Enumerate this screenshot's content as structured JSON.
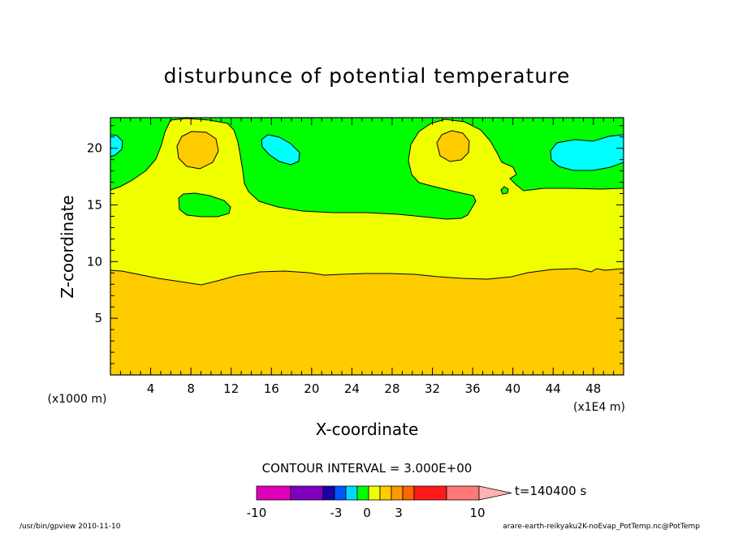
{
  "chart_data": {
    "type": "contour",
    "title": "disturbunce of potential temperature",
    "xlabel": "X-coordinate",
    "ylabel": "Z-coordinate",
    "x_unit": "(x1E4 m)",
    "y_unit": "(x1000 m)",
    "xlim": [
      0,
      51
    ],
    "ylim": [
      0,
      22.7
    ],
    "x_ticks": [
      4,
      8,
      12,
      16,
      20,
      24,
      28,
      32,
      36,
      40,
      44,
      48
    ],
    "y_ticks": [
      5,
      10,
      15,
      20
    ],
    "contour_interval": "CONTOUR INTERVAL = 3.000E+00",
    "time_label": "t=140400 s",
    "colorbar": {
      "colors": [
        "#e100b9",
        "#7f00bf",
        "#1b00a8",
        "#0055ff",
        "#00d9ff",
        "#00ff00",
        "#f0ff00",
        "#ffcc00",
        "#ff9900",
        "#ff6600",
        "#ff1a1a",
        "#ff7777",
        "#ffb3b3"
      ],
      "tick_labels": [
        "-10",
        "-3",
        "0",
        "3",
        "10"
      ]
    },
    "regions": [
      {
        "name": "orange",
        "color": "#ffcc00",
        "description_level": "3 to 6"
      },
      {
        "name": "yellow",
        "color": "#f0ff00",
        "description_level": "0 to 3"
      },
      {
        "name": "green",
        "color": "#00ff00",
        "description_level": "-3 to 0"
      },
      {
        "name": "cyan",
        "color": "#00ffff",
        "description_level": "-6 to -3"
      }
    ],
    "grid": false
  },
  "footer": {
    "left": "/usr/bin/gpview   2010-11-10",
    "right": "arare-earth-reikyaku2K-noEvap_PotTemp.nc@PotTemp"
  }
}
